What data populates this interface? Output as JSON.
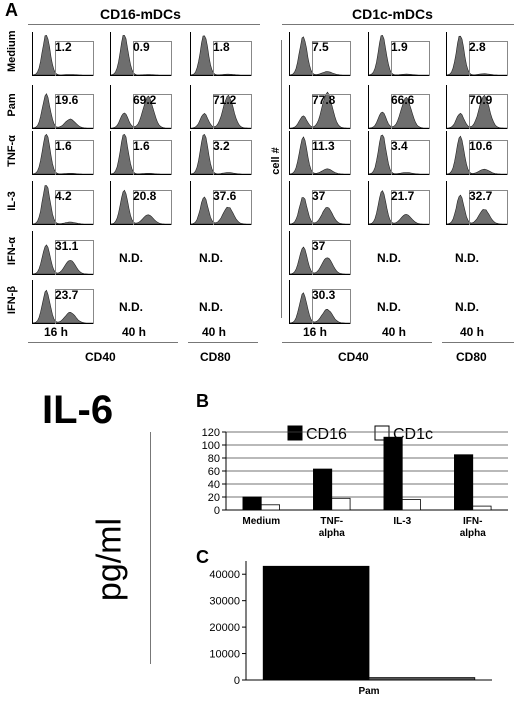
{
  "panel_a": {
    "letter": "A",
    "cd16_title": "CD16-mDCs",
    "cd1c_title": "CD1c-mDCs",
    "row_labels": [
      "Medium",
      "Pam",
      "TNF-α",
      "IL-3",
      "IFN-α",
      "IFN-β"
    ],
    "y_axis_label": "cell #",
    "nd_label": "N.D.",
    "cd16_values": [
      [
        "1.2",
        "0.9",
        "1.8"
      ],
      [
        "19.6",
        "69.2",
        "71.2"
      ],
      [
        "1.6",
        "1.6",
        "3.2"
      ],
      [
        "4.2",
        "20.8",
        "37.6"
      ],
      [
        "31.1",
        "N.D.",
        "N.D."
      ],
      [
        "23.7",
        "N.D.",
        "N.D."
      ]
    ],
    "cd1c_values": [
      [
        "7.5",
        "1.9",
        "2.8"
      ],
      [
        "77.8",
        "66.6",
        "70.9"
      ],
      [
        "11.3",
        "3.4",
        "10.6"
      ],
      [
        "37",
        "21.7",
        "32.7"
      ],
      [
        "37",
        "N.D.",
        "N.D."
      ],
      [
        "30.3",
        "N.D.",
        "N.D."
      ]
    ],
    "time_labels": [
      "16 h",
      "40 h",
      "40 h"
    ],
    "marker_labels": [
      "CD40",
      "CD80"
    ]
  },
  "il6_title": "IL-6",
  "y_unit": "pg/ml",
  "colors": {
    "cd16": "#000000",
    "cd1c": "#ffffff",
    "pam_cd1c": "#555555",
    "hist_fill": "#6e6e6e"
  },
  "chart_data": [
    {
      "panel": "B",
      "type": "bar",
      "categories": [
        "Medium",
        "TNF-\nalpha",
        "IL-3",
        "IFN-\nalpha"
      ],
      "series": [
        {
          "name": "CD16",
          "values": [
            20,
            63,
            112,
            85
          ]
        },
        {
          "name": "CD1c",
          "values": [
            8,
            18,
            16,
            6
          ]
        }
      ],
      "ylim": [
        0,
        120
      ],
      "yticks": [
        0,
        20,
        40,
        60,
        80,
        100,
        120
      ],
      "legend": "top"
    },
    {
      "panel": "C",
      "type": "bar",
      "categories": [
        "Pam"
      ],
      "series": [
        {
          "name": "CD16",
          "values": [
            43000
          ]
        },
        {
          "name": "CD1c",
          "values": [
            900
          ]
        }
      ],
      "ylim": [
        0,
        45000
      ],
      "yticks": [
        0,
        10000,
        20000,
        30000,
        40000
      ]
    }
  ]
}
